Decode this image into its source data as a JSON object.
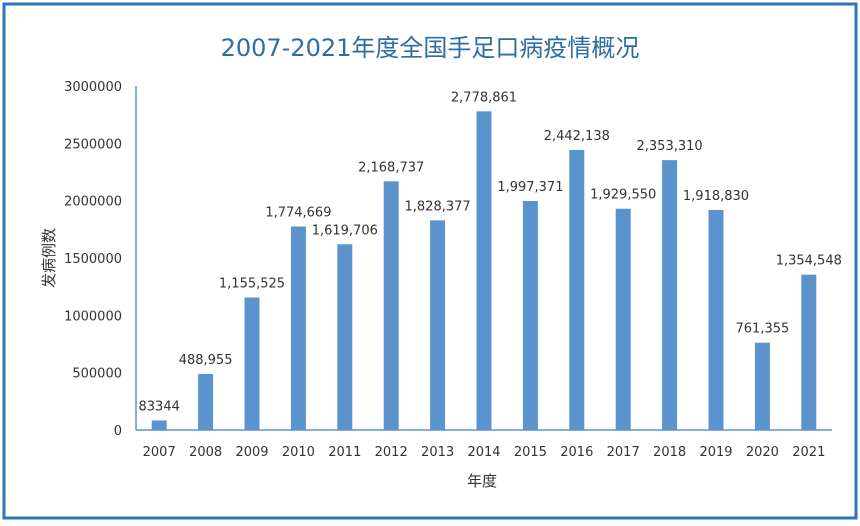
{
  "chart_data": {
    "type": "bar",
    "title": "2007-2021年度全国手足口病疫情概况",
    "xlabel": "年度",
    "ylabel": "发病例数",
    "categories": [
      "2007",
      "2008",
      "2009",
      "2010",
      "2011",
      "2012",
      "2013",
      "2014",
      "2015",
      "2016",
      "2017",
      "2018",
      "2019",
      "2020",
      "2021"
    ],
    "values": [
      83344,
      488955,
      1155525,
      1774669,
      1619706,
      2168737,
      1828377,
      2778861,
      1997371,
      2442138,
      1929550,
      2353310,
      1918830,
      761355,
      1354548
    ],
    "data_labels": [
      "83344",
      "488,955",
      "1,155,525",
      "1,774,669",
      "1,619,706",
      "2,168,737",
      "1,828,377",
      "2,778,861",
      "1,997,371",
      "2,442,138",
      "1,929,550",
      "2,353,310",
      "1,918,830",
      "761,355",
      "1,354,548"
    ],
    "yticks": [
      0,
      500000,
      1000000,
      1500000,
      2000000,
      2500000,
      3000000
    ],
    "ytick_labels": [
      "0",
      "500000",
      "1000000",
      "1500000",
      "2000000",
      "2500000",
      "3000000"
    ],
    "ylim": [
      0,
      3000000
    ],
    "grid": false,
    "colors": {
      "bar": "#5B93CC",
      "title": "#2E6DA4",
      "border": "#2E75B6",
      "axis": "#5B93CC",
      "text": "#333333"
    }
  }
}
